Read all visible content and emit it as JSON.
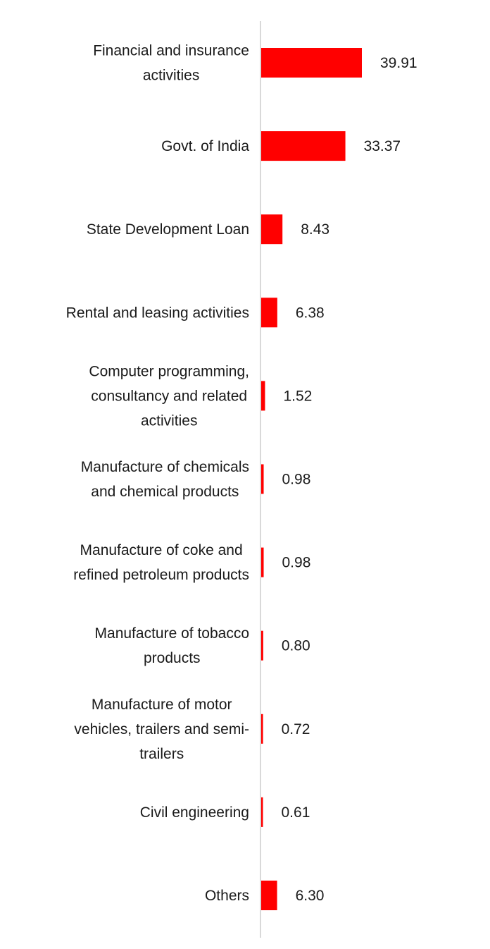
{
  "chart_data": {
    "type": "bar",
    "orientation": "horizontal",
    "categories": [
      [
        "Financial and insurance",
        "activities"
      ],
      [
        "Govt. of India"
      ],
      [
        "State Development Loan"
      ],
      [
        "Rental and leasing activities"
      ],
      [
        "Computer programming,",
        "consultancy and related",
        "activities"
      ],
      [
        "Manufacture of chemicals",
        "and chemical products"
      ],
      [
        "Manufacture of coke and",
        "refined petroleum products"
      ],
      [
        "Manufacture of tobacco",
        "products"
      ],
      [
        "Manufacture of motor",
        "vehicles, trailers and semi-",
        "trailers"
      ],
      [
        "Civil engineering"
      ],
      [
        "Others"
      ]
    ],
    "values": [
      39.91,
      33.37,
      8.43,
      6.38,
      1.52,
      0.98,
      0.98,
      0.8,
      0.72,
      0.61,
      6.3
    ],
    "value_labels": [
      "39.91",
      "33.37",
      "8.43",
      "6.38",
      "1.52",
      "0.98",
      "0.98",
      "0.80",
      "0.72",
      "0.61",
      "6.30"
    ],
    "xlim": [
      0,
      40
    ],
    "bar_color": "#ff0000",
    "axis_color": "#d9d9d9",
    "title": "",
    "xlabel": "",
    "ylabel": "",
    "grid": false,
    "legend": "none"
  }
}
